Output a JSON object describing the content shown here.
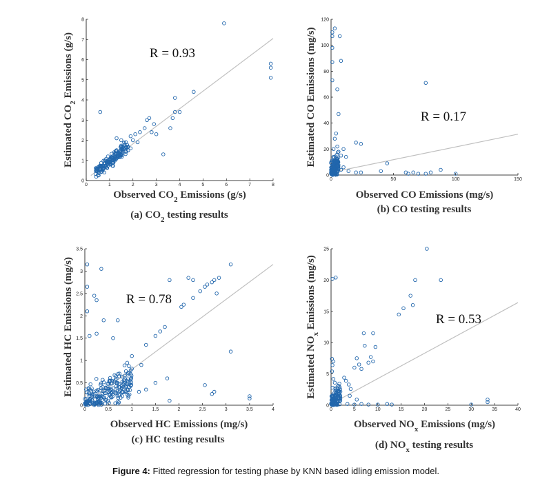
{
  "figure_caption": {
    "label": "Figure 4:",
    "text": " Fitted regression for testing phase by KNN based idling emission model."
  },
  "colors": {
    "marker": "#2166ac",
    "fit_line": "#c0c0c0",
    "axis": "#000000"
  },
  "chart_data": [
    {
      "id": "co2",
      "type": "scatter",
      "r_label": "R = 0.93",
      "xlabel": {
        "pre": "Observed CO",
        "sub": "2",
        "post": " Emissions (g/s)"
      },
      "ylabel": {
        "pre": "Estimated CO",
        "sub": "2",
        "post": " Emissions (g/s)"
      },
      "caption": {
        "pre": "(a) CO",
        "sub": "2",
        "post": " testing results"
      },
      "xlim": [
        0,
        8
      ],
      "ylim": [
        0,
        8
      ],
      "xticks": [
        0,
        1,
        2,
        3,
        4,
        5,
        6,
        7,
        8
      ],
      "yticks": [
        0,
        1,
        2,
        3,
        4,
        5,
        6,
        7,
        8
      ],
      "fit_line": {
        "x": [
          0.2,
          8
        ],
        "y": [
          0.25,
          7.05
        ]
      },
      "dense_cloud": {
        "x_range": [
          0.4,
          1.8
        ],
        "slope": 0.92,
        "intercept": 0.05,
        "spread": 0.3,
        "count": 170,
        "ymin": 0.05
      },
      "points": [
        [
          0.6,
          3.4
        ],
        [
          1.3,
          2.1
        ],
        [
          1.5,
          2.0
        ],
        [
          1.7,
          1.9
        ],
        [
          1.9,
          2.2
        ],
        [
          2.1,
          2.3
        ],
        [
          2.3,
          2.4
        ],
        [
          2.5,
          2.6
        ],
        [
          2.6,
          3.0
        ],
        [
          2.7,
          3.1
        ],
        [
          2.9,
          2.8
        ],
        [
          3.0,
          2.3
        ],
        [
          2.8,
          2.4
        ],
        [
          3.3,
          1.3
        ],
        [
          3.6,
          2.6
        ],
        [
          3.7,
          3.1
        ],
        [
          3.8,
          3.4
        ],
        [
          3.8,
          4.1
        ],
        [
          4.0,
          3.4
        ],
        [
          4.6,
          4.4
        ],
        [
          5.9,
          7.8
        ],
        [
          7.9,
          5.8
        ],
        [
          7.9,
          5.6
        ],
        [
          7.9,
          5.1
        ],
        [
          2.0,
          2.0
        ],
        [
          2.2,
          1.9
        ],
        [
          1.9,
          1.6
        ]
      ]
    },
    {
      "id": "co",
      "type": "scatter",
      "r_label": "R = 0.17",
      "xlabel": {
        "pre": "Observed CO Emissions (mg/s)",
        "sub": "",
        "post": ""
      },
      "ylabel": {
        "pre": "Estimated CO Emissions (mg/s)",
        "sub": "",
        "post": ""
      },
      "caption": {
        "pre": "(b) CO testing results",
        "sub": "",
        "post": ""
      },
      "xlim": [
        0,
        150
      ],
      "ylim": [
        0,
        120
      ],
      "xticks": [
        0,
        50,
        100,
        150
      ],
      "yticks": [
        0,
        20,
        40,
        60,
        80,
        100,
        120
      ],
      "fit_line": {
        "x": [
          0,
          150
        ],
        "y": [
          2.0,
          31.5
        ]
      },
      "dense_cloud": {
        "x_range": [
          0,
          6
        ],
        "slope": 1.2,
        "intercept": 2,
        "spread": 8,
        "count": 150,
        "ymin": 0
      },
      "points": [
        [
          1,
          110
        ],
        [
          1,
          107
        ],
        [
          1,
          98
        ],
        [
          1,
          87
        ],
        [
          1,
          73
        ],
        [
          3,
          113
        ],
        [
          7,
          107
        ],
        [
          8,
          88
        ],
        [
          5,
          66
        ],
        [
          6,
          47
        ],
        [
          2,
          20
        ],
        [
          3,
          28
        ],
        [
          4,
          32
        ],
        [
          5,
          22
        ],
        [
          6,
          18
        ],
        [
          8,
          15
        ],
        [
          10,
          20
        ],
        [
          12,
          14
        ],
        [
          20,
          25
        ],
        [
          24,
          24
        ],
        [
          8,
          4
        ],
        [
          10,
          6
        ],
        [
          14,
          3
        ],
        [
          20,
          2
        ],
        [
          24,
          2
        ],
        [
          40,
          3
        ],
        [
          45,
          9
        ],
        [
          60,
          2
        ],
        [
          62,
          1
        ],
        [
          66,
          2
        ],
        [
          70,
          1
        ],
        [
          76,
          1
        ],
        [
          80,
          2
        ],
        [
          88,
          4
        ],
        [
          100,
          1
        ],
        [
          76,
          71
        ]
      ]
    },
    {
      "id": "hc",
      "type": "scatter",
      "r_label": "R = 0.78",
      "xlabel": {
        "pre": "Observed HC Emissions (mg/s)",
        "sub": "",
        "post": ""
      },
      "ylabel": {
        "pre": "Estimated HC Emissions (mg/s)",
        "sub": "",
        "post": ""
      },
      "caption": {
        "pre": "(c) HC testing results",
        "sub": "",
        "post": ""
      },
      "xlim": [
        0,
        4
      ],
      "ylim": [
        0,
        3.5
      ],
      "xticks": [
        0,
        0.5,
        1,
        1.5,
        2,
        2.5,
        3,
        3.5,
        4
      ],
      "yticks": [
        0,
        0.5,
        1,
        1.5,
        2,
        2.5,
        3,
        3.5
      ],
      "fit_line": {
        "x": [
          0,
          4
        ],
        "y": [
          0.02,
          3.15
        ]
      },
      "dense_cloud": {
        "x_range": [
          0,
          1.0
        ],
        "slope": 0.5,
        "intercept": 0.05,
        "spread": 0.35,
        "count": 220,
        "ymin": 0
      },
      "points": [
        [
          0.05,
          3.15
        ],
        [
          0.35,
          3.05
        ],
        [
          0.05,
          2.65
        ],
        [
          0.2,
          2.45
        ],
        [
          0.25,
          2.35
        ],
        [
          0.05,
          2.1
        ],
        [
          0.4,
          1.9
        ],
        [
          0.7,
          1.9
        ],
        [
          0.1,
          1.55
        ],
        [
          0.25,
          1.6
        ],
        [
          0.6,
          1.5
        ],
        [
          1.0,
          1.1
        ],
        [
          1.3,
          1.35
        ],
        [
          1.5,
          1.55
        ],
        [
          1.7,
          1.75
        ],
        [
          1.6,
          1.65
        ],
        [
          1.8,
          2.8
        ],
        [
          2.05,
          2.2
        ],
        [
          2.1,
          2.25
        ],
        [
          2.3,
          2.4
        ],
        [
          2.45,
          2.55
        ],
        [
          2.55,
          2.65
        ],
        [
          2.6,
          2.7
        ],
        [
          2.7,
          2.75
        ],
        [
          2.75,
          2.8
        ],
        [
          2.85,
          2.85
        ],
        [
          2.2,
          2.85
        ],
        [
          2.3,
          2.8
        ],
        [
          2.8,
          2.5
        ],
        [
          3.1,
          3.15
        ],
        [
          3.1,
          1.2
        ],
        [
          3.5,
          0.2
        ],
        [
          3.5,
          0.15
        ],
        [
          2.75,
          0.3
        ],
        [
          2.7,
          0.25
        ],
        [
          2.55,
          0.45
        ],
        [
          1.75,
          0.6
        ],
        [
          1.8,
          0.1
        ],
        [
          1.5,
          0.5
        ],
        [
          1.3,
          0.35
        ],
        [
          1.2,
          0.9
        ],
        [
          0.9,
          0.95
        ],
        [
          1.15,
          0.3
        ]
      ]
    },
    {
      "id": "nox",
      "type": "scatter",
      "r_label": "R = 0.53",
      "xlabel": {
        "pre": "Observed NO",
        "sub": "x",
        "post": " Emissions (mg/s)"
      },
      "ylabel": {
        "pre": "Estimated NO",
        "sub": "x",
        "post": " Emissions (mg/s)"
      },
      "caption": {
        "pre": "(d) NO",
        "sub": "x",
        "post": " testing results"
      },
      "xlim": [
        0,
        40
      ],
      "ylim": [
        0,
        25
      ],
      "xticks": [
        0,
        5,
        10,
        15,
        20,
        25,
        30,
        35,
        40
      ],
      "yticks": [
        0,
        5,
        10,
        15,
        20,
        25
      ],
      "fit_line": {
        "x": [
          0,
          40
        ],
        "y": [
          0.2,
          16.4
        ]
      },
      "dense_cloud": {
        "x_range": [
          0,
          2
        ],
        "slope": 0.8,
        "intercept": 0.3,
        "spread": 1.5,
        "count": 110,
        "ymin": 0
      },
      "points": [
        [
          0.3,
          20.2
        ],
        [
          1.0,
          20.4
        ],
        [
          0.2,
          7.4
        ],
        [
          0.5,
          7.0
        ],
        [
          0.3,
          6.4
        ],
        [
          0.2,
          5.4
        ],
        [
          0.5,
          4.2
        ],
        [
          0.8,
          3.6
        ],
        [
          0.3,
          2.8
        ],
        [
          2.8,
          4.4
        ],
        [
          3.2,
          3.9
        ],
        [
          3.8,
          3.3
        ],
        [
          4.2,
          2.6
        ],
        [
          5.0,
          6.0
        ],
        [
          5.5,
          7.5
        ],
        [
          6.0,
          6.5
        ],
        [
          6.5,
          5.8
        ],
        [
          7.2,
          9.5
        ],
        [
          7.0,
          11.5
        ],
        [
          9.0,
          11.5
        ],
        [
          9.5,
          9.3
        ],
        [
          8.5,
          7.7
        ],
        [
          9.0,
          7.0
        ],
        [
          8.0,
          6.8
        ],
        [
          14.5,
          14.5
        ],
        [
          15.5,
          15.5
        ],
        [
          17.0,
          17.5
        ],
        [
          17.5,
          16.0
        ],
        [
          18.0,
          20.0
        ],
        [
          20.5,
          25.0
        ],
        [
          23.5,
          20.0
        ],
        [
          30.0,
          0.1
        ],
        [
          33.5,
          0.5
        ],
        [
          33.5,
          0.9
        ],
        [
          13.0,
          0.1
        ],
        [
          12.0,
          0.2
        ],
        [
          10.0,
          0.1
        ],
        [
          8.0,
          0.1
        ],
        [
          6.5,
          0.2
        ],
        [
          5.0,
          0.1
        ],
        [
          3.5,
          0.2
        ],
        [
          4.0,
          1.5
        ],
        [
          5.5,
          0.9
        ]
      ]
    }
  ]
}
